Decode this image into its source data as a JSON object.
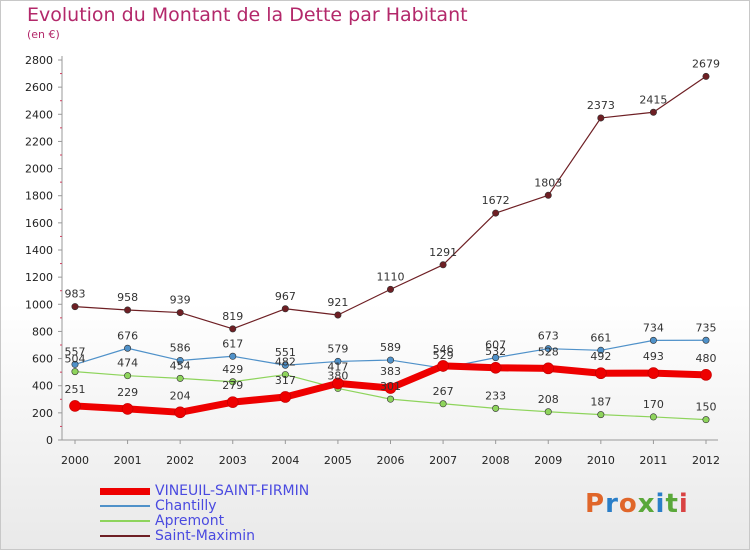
{
  "title": "Evolution du Montant de la Dette par Habitant",
  "subtitle": "(en €)",
  "logo": {
    "text": "Proxiti",
    "colors": [
      "#e0662a",
      "#2a7ec8",
      "#e0662a",
      "#5aa83a",
      "#2a7ec8",
      "#5aa83a",
      "#d94242"
    ]
  },
  "chart_data": {
    "type": "line",
    "x": [
      "2000",
      "2001",
      "2002",
      "2003",
      "2004",
      "2005",
      "2006",
      "2007",
      "2008",
      "2009",
      "2010",
      "2011",
      "2012"
    ],
    "ylim": [
      0,
      2800
    ],
    "yticks": [
      0,
      200,
      400,
      600,
      800,
      1000,
      1200,
      1400,
      1600,
      1800,
      2000,
      2200,
      2400,
      2600,
      2800
    ],
    "grid": false,
    "legend_position": "bottom-left",
    "series": [
      {
        "name": "Saint-Maximin",
        "color": "#6e1f24",
        "width": 1.2,
        "values": [
          983,
          958,
          939,
          819,
          967,
          921,
          1110,
          1291,
          1672,
          1803,
          2373,
          2415,
          2679
        ]
      },
      {
        "name": "Apremont",
        "color": "#8ed45c",
        "width": 1.2,
        "values": [
          504,
          474,
          454,
          429,
          482,
          380,
          301,
          267,
          233,
          208,
          187,
          170,
          150
        ]
      },
      {
        "name": "Chantilly",
        "color": "#4f91c9",
        "width": 1.2,
        "values": [
          557,
          676,
          586,
          617,
          551,
          579,
          589,
          529,
          607,
          673,
          661,
          734,
          735
        ]
      },
      {
        "name": "VINEUIL-SAINT-FIRMIN",
        "color": "#ee0000",
        "width": 7,
        "values": [
          251,
          229,
          204,
          279,
          317,
          417,
          383,
          546,
          532,
          528,
          492,
          493,
          480
        ]
      }
    ],
    "label_rows": [
      {
        "series": "Saint-Maximin",
        "labels": [
          "983",
          "958",
          "939",
          "819",
          "967",
          "921",
          "1110",
          "1291",
          "1672",
          "1803",
          "2373",
          "2415",
          "2679"
        ]
      },
      {
        "series": "Chantilly",
        "labels": [
          "557",
          "676",
          "586",
          "617",
          "551",
          "579",
          "589",
          "529",
          "607",
          "673",
          "661",
          "734",
          "735"
        ]
      },
      {
        "series": "Apremont",
        "labels": [
          "504",
          "474",
          "454",
          "429",
          "482",
          "380",
          "301",
          "267",
          "233",
          "208",
          "187",
          "170",
          "150"
        ]
      },
      {
        "series": "VINEUIL-SAINT-FIRMIN",
        "labels": [
          "251",
          "229",
          "204",
          "279",
          "317",
          "417",
          "383",
          "546",
          "532",
          "528",
          "492",
          "493",
          "480"
        ]
      }
    ]
  },
  "legend": [
    {
      "name": "VINEUIL-SAINT-FIRMIN",
      "color": "#ee0000",
      "width": 7
    },
    {
      "name": "Chantilly",
      "color": "#4f91c9",
      "width": 2
    },
    {
      "name": "Apremont",
      "color": "#8ed45c",
      "width": 2
    },
    {
      "name": "Saint-Maximin",
      "color": "#6e1f24",
      "width": 2
    }
  ]
}
